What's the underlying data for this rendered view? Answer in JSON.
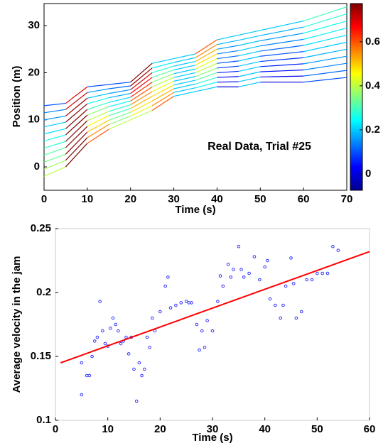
{
  "chart_data": [
    {
      "type": "line",
      "colormap": "jet",
      "annotation": "Real Data, Trial #25",
      "xlabel": "Time (s)",
      "ylabel": "Position (m)",
      "xlim": [
        0,
        70
      ],
      "xticks": [
        0,
        10,
        20,
        30,
        40,
        50,
        60,
        70
      ],
      "ylim": [
        -5,
        35
      ],
      "yticks": [
        0,
        10,
        20,
        30
      ],
      "clim": [
        -0.075,
        0.78
      ],
      "cticks": [
        0,
        0.2,
        0.4,
        0.6
      ],
      "x": [
        0,
        5,
        10,
        15,
        20,
        25,
        30,
        35,
        40,
        45,
        50,
        55,
        60,
        65,
        70
      ],
      "series": [
        {
          "values": [
            -2,
            0,
            5,
            8,
            10,
            12,
            15,
            16,
            17,
            17,
            18,
            18,
            18,
            18.5,
            19
          ]
        },
        {
          "values": [
            -0.5,
            1.4,
            6.2,
            9.0,
            10.8,
            13,
            15.8,
            16.8,
            18,
            18.1,
            19.1,
            19.2,
            19.3,
            19.9,
            20.5
          ]
        },
        {
          "values": [
            1,
            2.7,
            7.4,
            9.9,
            11.6,
            14,
            16.6,
            17.6,
            19,
            19.2,
            20.2,
            20.4,
            20.6,
            21.3,
            22
          ]
        },
        {
          "values": [
            2.5,
            4.1,
            8.6,
            10.9,
            12.4,
            15,
            17.4,
            18.4,
            20,
            20.3,
            21.3,
            21.6,
            21.9,
            22.7,
            23.5
          ]
        },
        {
          "values": [
            4,
            5.4,
            9.8,
            11.8,
            13.2,
            16,
            18.2,
            19.2,
            21,
            21.4,
            22.4,
            22.8,
            23.2,
            24.1,
            25
          ]
        },
        {
          "values": [
            5.5,
            6.8,
            11,
            12.8,
            14,
            17,
            19,
            20,
            22,
            22.5,
            23.5,
            24,
            24.5,
            25.5,
            26.5
          ]
        },
        {
          "values": [
            7,
            8.1,
            12.2,
            13.7,
            14.8,
            18,
            19.8,
            20.8,
            23,
            23.6,
            24.6,
            25.2,
            25.8,
            26.9,
            28
          ]
        },
        {
          "values": [
            8.5,
            9.5,
            13.4,
            14.7,
            15.6,
            19,
            20.6,
            21.6,
            24,
            24.7,
            25.7,
            26.4,
            27.1,
            28.3,
            29.5
          ]
        },
        {
          "values": [
            10,
            10.8,
            14.6,
            15.6,
            16.4,
            20,
            21.4,
            22.4,
            25,
            25.8,
            26.8,
            27.6,
            28.4,
            29.7,
            31
          ]
        },
        {
          "values": [
            11.5,
            12.2,
            15.8,
            16.6,
            17.2,
            21,
            22.2,
            23.2,
            26,
            26.9,
            27.9,
            28.8,
            29.7,
            31.1,
            32.5
          ]
        },
        {
          "values": [
            13,
            13.5,
            17,
            17.5,
            18,
            22,
            23,
            24,
            27,
            28,
            29,
            30,
            31,
            32.5,
            34
          ]
        }
      ]
    },
    {
      "type": "scatter",
      "xlabel": "Time (s)",
      "ylabel": "Average velocity in the jam",
      "xlim": [
        0,
        60
      ],
      "xticks": [
        0,
        10,
        20,
        30,
        40,
        50,
        60
      ],
      "ylim": [
        0.1,
        0.25
      ],
      "yticks": [
        0.1,
        0.15,
        0.2,
        0.25
      ],
      "color": "#3333ff",
      "fit": {
        "color": "#ff0000",
        "x": [
          1,
          60
        ],
        "values": [
          0.145,
          0.232
        ]
      },
      "x": [
        5,
        5,
        6,
        6.5,
        7,
        7.5,
        8,
        8.5,
        9,
        9.5,
        10,
        10.5,
        11,
        11.5,
        12,
        12.5,
        13,
        13.5,
        14,
        14.5,
        15,
        15.5,
        16,
        16.5,
        17,
        17.5,
        18,
        18.5,
        19,
        20,
        21,
        21.5,
        22,
        23,
        24,
        25,
        25.5,
        26,
        27,
        27.5,
        28,
        28.5,
        29,
        30,
        31,
        31.5,
        32,
        33,
        33.5,
        34,
        35,
        35.5,
        36,
        37,
        38,
        39,
        40,
        40.5,
        41,
        42,
        43,
        43.5,
        44,
        45,
        45.5,
        46,
        47,
        48,
        49,
        50,
        51,
        52,
        53,
        54
      ],
      "values": [
        0.145,
        0.12,
        0.135,
        0.135,
        0.15,
        0.162,
        0.165,
        0.193,
        0.17,
        0.16,
        0.158,
        0.172,
        0.18,
        0.175,
        0.17,
        0.16,
        0.162,
        0.165,
        0.152,
        0.165,
        0.14,
        0.115,
        0.145,
        0.135,
        0.14,
        0.165,
        0.157,
        0.18,
        0.17,
        0.185,
        0.205,
        0.212,
        0.188,
        0.19,
        0.192,
        0.193,
        0.192,
        0.192,
        0.175,
        0.155,
        0.17,
        0.157,
        0.178,
        0.17,
        0.193,
        0.213,
        0.205,
        0.222,
        0.212,
        0.218,
        0.236,
        0.218,
        0.212,
        0.215,
        0.228,
        0.21,
        0.22,
        0.225,
        0.195,
        0.19,
        0.18,
        0.19,
        0.205,
        0.227,
        0.207,
        0.18,
        0.185,
        0.21,
        0.21,
        0.215,
        0.215,
        0.215,
        0.236,
        0.233
      ]
    }
  ]
}
